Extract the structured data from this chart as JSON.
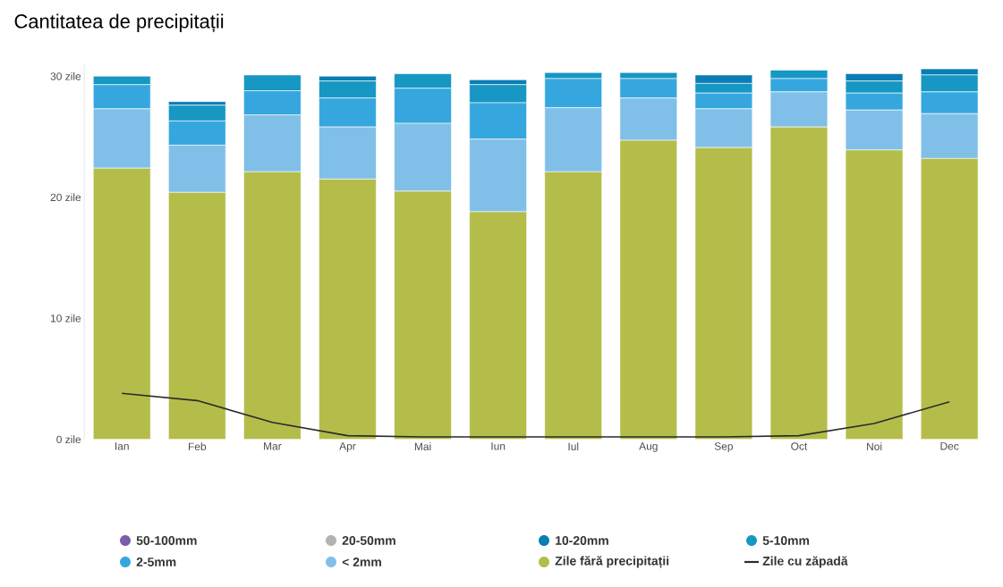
{
  "chart_data": {
    "type": "bar",
    "stacked": true,
    "title": "Cantitatea de precipitații",
    "categories": [
      "Ian",
      "Feb",
      "Mar",
      "Apr",
      "Mai",
      "Iun",
      "Iul",
      "Aug",
      "Sep",
      "Oct",
      "Noi",
      "Dec"
    ],
    "series": [
      {
        "name": "Zile fără precipitații",
        "color": "#b5bd4a",
        "values": [
          22.4,
          20.4,
          22.1,
          21.5,
          20.5,
          18.8,
          22.1,
          24.7,
          24.1,
          25.8,
          23.9,
          23.2
        ]
      },
      {
        "name": "< 2mm",
        "color": "#80c0e8",
        "values": [
          4.9,
          3.9,
          4.7,
          4.3,
          5.6,
          6.0,
          5.3,
          3.5,
          3.2,
          2.9,
          3.3,
          3.7
        ]
      },
      {
        "name": "2-5mm",
        "color": "#36a7de",
        "values": [
          2.0,
          2.0,
          2.0,
          2.4,
          2.9,
          3.0,
          2.4,
          1.6,
          1.3,
          1.1,
          1.4,
          1.8
        ]
      },
      {
        "name": "5-10mm",
        "color": "#1797c3",
        "values": [
          0.7,
          1.3,
          1.3,
          1.4,
          1.2,
          1.5,
          0.5,
          0.5,
          0.8,
          0.7,
          1.0,
          1.4
        ]
      },
      {
        "name": "10-20mm",
        "color": "#0a7db5",
        "values": [
          0,
          0.3,
          0,
          0.4,
          0,
          0.4,
          0,
          0,
          0.7,
          0,
          0.6,
          0.5
        ]
      },
      {
        "name": "20-50mm",
        "color": "#b3b3b3",
        "values": [
          0,
          0,
          0,
          0,
          0,
          0,
          0,
          0,
          0,
          0,
          0,
          0
        ]
      },
      {
        "name": "50-100mm",
        "color": "#7b5ea7",
        "values": [
          0,
          0,
          0,
          0,
          0,
          0,
          0,
          0,
          0,
          0,
          0,
          0
        ]
      },
      {
        "name": "Zile cu zăpadă",
        "type": "line",
        "color": "#2b2b2b",
        "values": [
          3.8,
          3.2,
          1.4,
          0.3,
          0.2,
          0.2,
          0.2,
          0.2,
          0.2,
          0.3,
          1.3,
          3.1
        ]
      }
    ],
    "ylim": [
      0,
      31
    ],
    "yticks": [
      {
        "value": 0,
        "label": "0 zile"
      },
      {
        "value": 10,
        "label": "10 zile"
      },
      {
        "value": 20,
        "label": "20 zile"
      },
      {
        "value": 30,
        "label": "30 zile"
      }
    ],
    "legend": "bottom"
  }
}
